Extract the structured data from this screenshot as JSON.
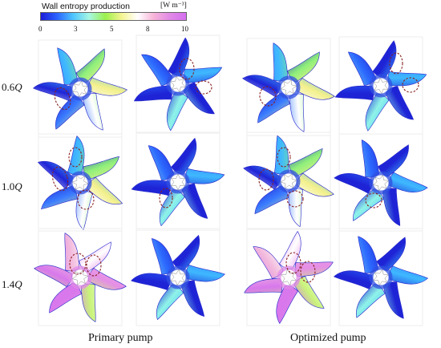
{
  "colorbar": {
    "title": "Wall entropy production",
    "unit": "[W m⁻³]",
    "ticks": [
      "0",
      "3",
      "5",
      "8",
      "10"
    ],
    "stops": [
      "#1c1cd8",
      "#2b63ff",
      "#4fc6ff",
      "#a6f7e3",
      "#9cf04c",
      "#f4f490",
      "#ffffff",
      "#f7b4d8",
      "#e18ae6",
      "#d46ef0"
    ]
  },
  "rows": [
    {
      "prefix": "0.6",
      "suffix": "Q"
    },
    {
      "prefix": "1.0",
      "suffix": "Q"
    },
    {
      "prefix": "1.4",
      "suffix": "Q"
    }
  ],
  "groups": [
    {
      "label": "Primary pump"
    },
    {
      "label": "Optimized pump"
    }
  ]
}
